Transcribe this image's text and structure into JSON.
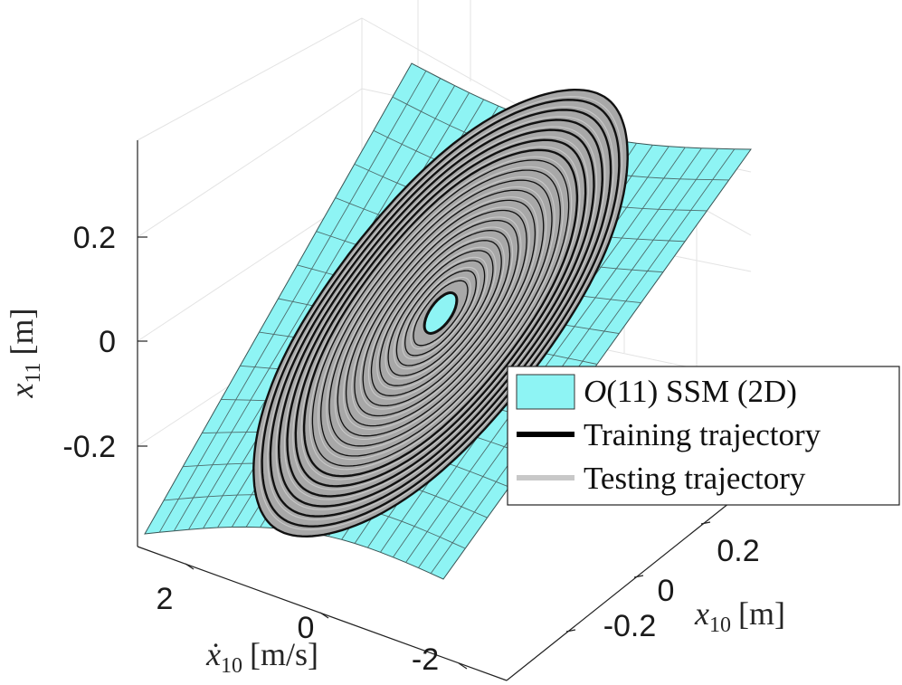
{
  "chart_data": {
    "type": "surface3d",
    "axes": {
      "x": {
        "label_symbol": "x",
        "label_sub": "10",
        "label_unit": "[m]",
        "ticks": [
          0.2,
          0,
          -0.2
        ],
        "tick_labels": [
          "0.2",
          "0",
          "-0.2"
        ],
        "range": [
          -0.3,
          0.3
        ]
      },
      "y": {
        "label_symbol": "ẋ",
        "label_sub": "10",
        "label_unit": "[m/s]",
        "ticks": [
          2,
          0,
          -2
        ],
        "tick_labels": [
          "2",
          "0",
          "-2"
        ],
        "range": [
          -3,
          3
        ]
      },
      "z": {
        "label_symbol": "x",
        "label_sub": "11",
        "label_unit": "[m]",
        "ticks": [
          0.2,
          0,
          -0.2
        ],
        "tick_labels": [
          "0.2",
          "0",
          "-0.2"
        ],
        "range": [
          -0.38,
          0.38
        ]
      }
    },
    "grid": true,
    "legend_position": "right",
    "legend": [
      {
        "label": "O(11) SSM (2D)",
        "label_italic": "O",
        "label_rest": "(11) SSM (2D)",
        "color": "#8ef4f4",
        "kind": "patch"
      },
      {
        "label": "Training trajectory",
        "color": "#000000",
        "kind": "line"
      },
      {
        "label": "Testing trajectory",
        "color": "#c8c8c8",
        "kind": "line"
      }
    ],
    "series": [
      {
        "name": "O(11) SSM (2D)",
        "kind": "surface",
        "color": "#8ef4f4"
      },
      {
        "name": "Training trajectory",
        "kind": "trajectory",
        "color": "#000000"
      },
      {
        "name": "Testing trajectory",
        "kind": "trajectory",
        "color": "#c8c8c8"
      }
    ]
  }
}
